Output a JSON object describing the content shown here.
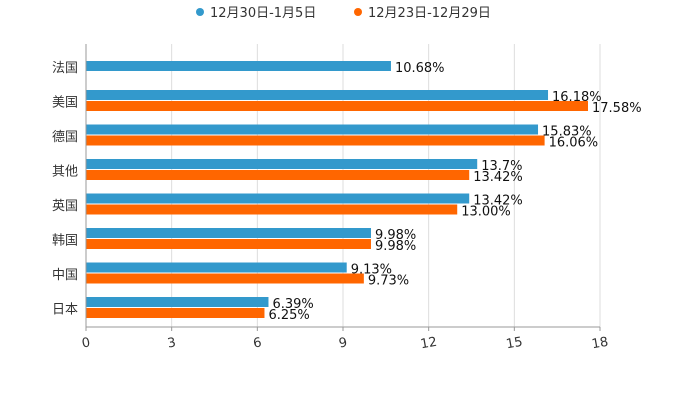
{
  "chart_data": {
    "type": "bar",
    "orientation": "horizontal",
    "categories": [
      "法国",
      "美国",
      "德国",
      "其他",
      "英国",
      "韩国",
      "中国",
      "日本"
    ],
    "series": [
      {
        "name": "12月30日-1月5日",
        "color": "#3399cc",
        "values": [
          10.68,
          16.18,
          15.83,
          13.7,
          13.42,
          9.98,
          9.13,
          6.39
        ],
        "labels": [
          "10.68%",
          "16.18%",
          "15.83%",
          "13.7%",
          "13.42%",
          "9.98%",
          "9.13%",
          "6.39%"
        ]
      },
      {
        "name": "12月23日-12月29日",
        "color": "#ff6600",
        "values": [
          null,
          17.58,
          16.06,
          13.42,
          13.0,
          9.98,
          9.73,
          6.25
        ],
        "labels": [
          "",
          "17.58%",
          "16.06%",
          "13.42%",
          "13.00%",
          "9.98%",
          "9.73%",
          "6.25%"
        ]
      }
    ],
    "xlim": [
      0,
      18
    ],
    "ticks": [
      0,
      3,
      6,
      9,
      12,
      15,
      18
    ],
    "tick_labels": [
      "0",
      "3",
      "6",
      "9",
      "12",
      "15",
      "18"
    ],
    "grid": true,
    "legend_position": "top-center",
    "title": "",
    "xlabel": "",
    "ylabel": ""
  }
}
